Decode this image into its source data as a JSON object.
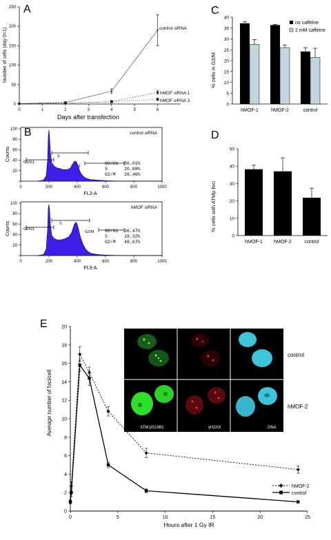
{
  "panel_labels": {
    "A": "A",
    "B": "B",
    "C": "C",
    "D": "D",
    "E": "E"
  },
  "colors": {
    "histogram_fill": "#3d1fe8",
    "bar_black": "#000000",
    "bar_gray": "#c3d6e0",
    "micro_green": "#2ee02a",
    "micro_red": "#e0141e",
    "micro_cyan": "#3cc4d8"
  },
  "chart_data": [
    {
      "panel": "A",
      "type": "line",
      "xlabel": "Days after transfection",
      "ylabel": "Number of cells (day 0=1)",
      "xlim": [
        0,
        7
      ],
      "ylim": [
        0,
        250
      ],
      "x_ticks": [
        0,
        1,
        2,
        3,
        4,
        5,
        6
      ],
      "y_ticks": [
        0,
        50,
        100,
        150,
        200,
        250
      ],
      "x_tick_labels": [
        "0",
        "1",
        "2",
        "3",
        "4",
        "5",
        "6"
      ],
      "y_tick_labels": [
        "0",
        "50",
        "100",
        "150",
        "200",
        "250"
      ],
      "series": [
        {
          "name": "control siRNA",
          "x": [
            0,
            2,
            4,
            6
          ],
          "y": [
            1,
            4,
            33,
            190
          ],
          "err": [
            0,
            2,
            6,
            40
          ]
        },
        {
          "name": "hMOF siRNA 1",
          "x": [
            0,
            2,
            4,
            6
          ],
          "y": [
            1,
            2,
            6,
            30
          ],
          "err": [
            0,
            1,
            3,
            4
          ]
        },
        {
          "name": "hMOF siRNA 3",
          "x": [
            0,
            2,
            4,
            6
          ],
          "y": [
            1,
            2,
            6,
            12
          ],
          "err": [
            0,
            1,
            2,
            3
          ]
        }
      ]
    },
    {
      "panel": "B",
      "type": "area",
      "xlabel": "FL3-A",
      "ylabel": "Counts",
      "xlim": [
        0,
        1000
      ],
      "x_ticks": [
        0,
        200,
        400,
        600,
        800,
        1000
      ],
      "x_tick_labels": [
        "0",
        "200",
        "400",
        "600",
        "800",
        "1000"
      ],
      "histograms": [
        {
          "title": "control siRNA",
          "ylim": [
            0,
            100
          ],
          "y_ticks": [
            0,
            20,
            40,
            60,
            80,
            100
          ],
          "y_tick_labels": [
            "",
            "20",
            "40",
            "60",
            "80",
            "100"
          ],
          "gates": [
            "G0/G1",
            "S",
            "G2/M"
          ],
          "stats": [
            {
              "phase": "G0/G1",
              "value": "56.01%"
            },
            {
              "phase": "S",
              "value": "20.08%"
            },
            {
              "phase": "G2/M",
              "value": "28.46%"
            }
          ],
          "profile": {
            "x": [
              120,
              160,
              180,
              190,
              195,
              200,
              205,
              210,
              220,
              240,
              260,
              280,
              300,
              320,
              340,
              360,
              370,
              380,
              390,
              400,
              410,
              420,
              440,
              460,
              480,
              500,
              550,
              600,
              700,
              800,
              1000
            ],
            "y": [
              0,
              2,
              10,
              40,
              85,
              98,
              82,
              55,
              35,
              28,
              25,
              24,
              22,
              22,
              23,
              28,
              34,
              38,
              38,
              34,
              26,
              18,
              10,
              6,
              4,
              3,
              2,
              1,
              0,
              0,
              0
            ]
          }
        },
        {
          "title": "hMOF siRNA",
          "ylim": [
            0,
            100
          ],
          "y_ticks": [
            0,
            20,
            40,
            60,
            80,
            100
          ],
          "y_tick_labels": [
            "",
            "20",
            "40",
            "60",
            "80",
            "100"
          ],
          "gates": [
            "G0/G1",
            "S",
            "G2/M"
          ],
          "stats": [
            {
              "phase": "G0/G1",
              "value": "36.47%"
            },
            {
              "phase": "S",
              "value": "19.32%"
            },
            {
              "phase": "G2/M",
              "value": "48.67%"
            }
          ],
          "profile": {
            "x": [
              120,
              160,
              180,
              190,
              195,
              200,
              205,
              210,
              220,
              240,
              260,
              280,
              300,
              320,
              340,
              360,
              370,
              380,
              390,
              400,
              410,
              420,
              440,
              460,
              480,
              500,
              550,
              600,
              700,
              800,
              1000
            ],
            "y": [
              0,
              2,
              12,
              50,
              90,
              98,
              86,
              60,
              38,
              32,
              30,
              30,
              31,
              33,
              36,
              44,
              52,
              60,
              64,
              60,
              50,
              38,
              22,
              12,
              7,
              4,
              2,
              1,
              0,
              0,
              0
            ]
          }
        }
      ]
    },
    {
      "panel": "C",
      "type": "bar",
      "ylabel": "% cells in G2/M",
      "ylim": [
        0,
        40
      ],
      "y_ticks": [
        0,
        5,
        10,
        15,
        20,
        25,
        30,
        35,
        40
      ],
      "y_tick_labels": [
        "0",
        "5",
        "10",
        "15",
        "20",
        "25",
        "30",
        "35",
        "40"
      ],
      "categories": [
        "hMOF-1",
        "hMOF-2",
        "control"
      ],
      "series": [
        {
          "name": "no caffeine",
          "values": [
            37.2,
            36.4,
            24.2
          ],
          "err": [
            0.7,
            0.3,
            1.8
          ]
        },
        {
          "name": "2 mM caffeine",
          "values": [
            27.5,
            26.0,
            21.5
          ],
          "err": [
            2.2,
            1.2,
            4.2
          ]
        }
      ],
      "legend": "top-right"
    },
    {
      "panel": "D",
      "type": "bar",
      "ylabel": "% cells with ATMp foci",
      "ylim": [
        0,
        50
      ],
      "y_ticks": [
        0,
        10,
        20,
        30,
        40,
        50
      ],
      "y_tick_labels": [
        "0",
        "10",
        "20",
        "30",
        "40",
        "50"
      ],
      "categories": [
        "hMOF-1",
        "hMOF-2",
        "control"
      ],
      "values": [
        38.2,
        37.0,
        21.8
      ],
      "err": [
        2.3,
        7.8,
        5.5
      ]
    },
    {
      "panel": "E",
      "type": "line",
      "xlabel": "Hours after 1 Gy IR",
      "ylabel": "Average number of foci/cell",
      "xlim": [
        0,
        25
      ],
      "ylim": [
        0,
        20
      ],
      "x_ticks": [
        0,
        5,
        10,
        15,
        20,
        25
      ],
      "y_ticks": [
        0,
        2,
        4,
        6,
        8,
        10,
        12,
        14,
        16,
        18,
        20
      ],
      "x_tick_labels": [
        "0",
        "5",
        "10",
        "15",
        "20",
        "25"
      ],
      "y_tick_labels": [
        "0",
        "2",
        "4",
        "6",
        "8",
        "10",
        "12",
        "14",
        "16",
        "18",
        "20"
      ],
      "series": [
        {
          "name": "hMOF-2",
          "x": [
            0,
            0.1,
            1,
            2,
            4,
            8,
            24
          ],
          "y": [
            1.0,
            2.7,
            17.0,
            15.0,
            10.8,
            6.3,
            4.5
          ],
          "err": [
            0.2,
            0.5,
            0.8,
            0.6,
            0.5,
            0.5,
            0.4
          ]
        },
        {
          "name": "control",
          "x": [
            0,
            0.1,
            1,
            2,
            4,
            8,
            24
          ],
          "y": [
            1.0,
            2.0,
            15.8,
            14.4,
            5.0,
            2.2,
            1.0
          ],
          "err": [
            0.2,
            0.4,
            0.6,
            0.8,
            0.3,
            0.2,
            0.1
          ]
        }
      ],
      "legend": "right"
    }
  ],
  "micrograph": {
    "row_labels": [
      "control",
      "hMOF-2"
    ],
    "column_labels": [
      "ATM pS1981",
      "γH2AX",
      "DNA"
    ]
  }
}
